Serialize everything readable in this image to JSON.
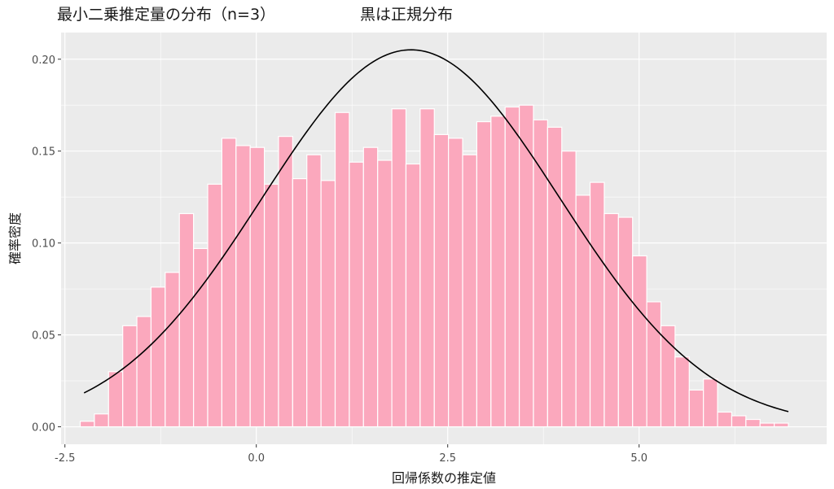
{
  "chart_data": {
    "type": "bar",
    "title": "最小二乗推定量の分布（n=3）",
    "subtitle": "黒は正規分布",
    "xlabel": "回帰係数の推定値",
    "ylabel": "確率密度",
    "xlim": [
      -2.55,
      7.45
    ],
    "ylim": [
      -0.0095,
      0.2145
    ],
    "x_ticks": [
      -2.5,
      0.0,
      2.5,
      5.0
    ],
    "x_tick_labels": [
      "-2.5",
      "0.0",
      "2.5",
      "5.0"
    ],
    "y_ticks": [
      0.0,
      0.05,
      0.1,
      0.15,
      0.2
    ],
    "y_tick_labels": [
      "0.00",
      "0.05",
      "0.10",
      "0.15",
      "0.20"
    ],
    "grid": true,
    "histogram": {
      "bin_start": -2.3,
      "bin_width": 0.185,
      "values": [
        0.003,
        0.007,
        0.03,
        0.055,
        0.06,
        0.076,
        0.084,
        0.116,
        0.097,
        0.132,
        0.157,
        0.153,
        0.152,
        0.132,
        0.158,
        0.135,
        0.148,
        0.134,
        0.171,
        0.144,
        0.152,
        0.145,
        0.173,
        0.143,
        0.173,
        0.159,
        0.157,
        0.148,
        0.166,
        0.169,
        0.174,
        0.175,
        0.167,
        0.163,
        0.15,
        0.126,
        0.133,
        0.116,
        0.114,
        0.093,
        0.068,
        0.055,
        0.038,
        0.02,
        0.026,
        0.008,
        0.006,
        0.004,
        0.002,
        0.002
      ]
    },
    "normal_curve": {
      "mean": 2.02,
      "sd": 1.945,
      "x_from": -2.25,
      "x_to": 6.95
    },
    "colors": {
      "panel_background": "#ebebeb",
      "grid": "#ffffff",
      "bar_fill": "#fba8bd",
      "bar_outline": "#ffffff",
      "curve": "#000000"
    }
  }
}
